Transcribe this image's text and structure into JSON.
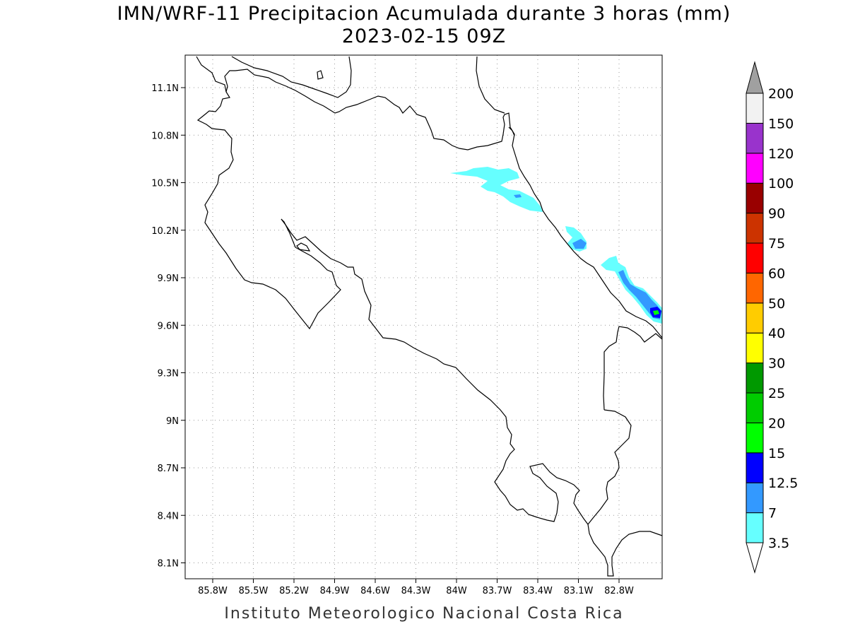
{
  "header": {
    "title": "IMN/WRF-11 Precipitacion Acumulada durante 3 horas (mm)",
    "subtitle": "2023-02-15 09Z"
  },
  "footer": {
    "text": "Instituto Meteorologico Nacional Costa Rica"
  },
  "map": {
    "lat_ticks": [
      "11.1N",
      "10.8N",
      "10.5N",
      "10.2N",
      "9.9N",
      "9.6N",
      "9.3N",
      "9N",
      "8.7N",
      "8.4N",
      "8.1N"
    ],
    "lon_ticks": [
      "85.8W",
      "85.5W",
      "85.2W",
      "84.9W",
      "84.6W",
      "84.3W",
      "84W",
      "83.7W",
      "83.4W",
      "83.1W",
      "82.8W"
    ],
    "grid": "dotted",
    "colors": {
      "coast": "#000000",
      "light_cyan": "#66ffff",
      "light_blue": "#3399ff",
      "blue": "#0000ff",
      "green": "#00ff00"
    }
  },
  "colorbar": {
    "labels": [
      "3.5",
      "7",
      "12.5",
      "15",
      "20",
      "25",
      "30",
      "40",
      "50",
      "60",
      "75",
      "90",
      "100",
      "120",
      "150",
      "200"
    ],
    "colors": [
      "#66ffff",
      "#3399ff",
      "#0000ff",
      "#00ff00",
      "#00cc00",
      "#009900",
      "#ffff00",
      "#ffcc00",
      "#ff6600",
      "#ff0000",
      "#cc3300",
      "#990000",
      "#ff00ff",
      "#9933cc",
      "#f2f2f2"
    ],
    "over_color": "#a0a0a0",
    "under_color": "#ffffff"
  }
}
